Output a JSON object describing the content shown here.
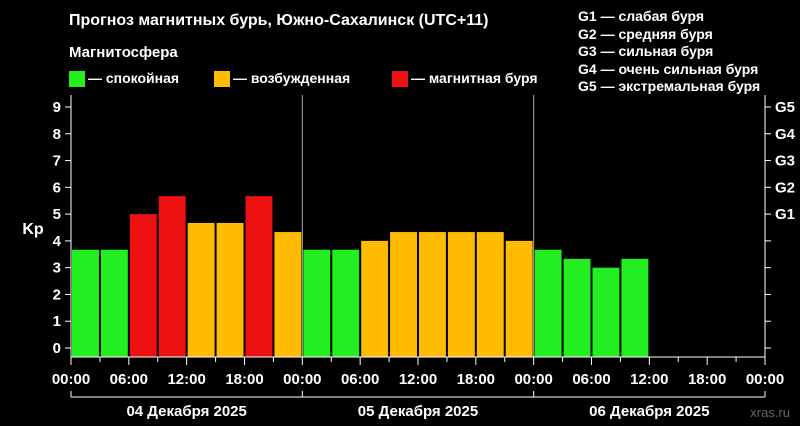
{
  "title": "Прогноз магнитных бурь, Южно-Сахалинск (UTC+11)",
  "subtitle": "Магнитосфера",
  "legend": [
    {
      "label": "— спокойная",
      "color": "#22ee22"
    },
    {
      "label": "— возбужденная",
      "color": "#ffbb00"
    },
    {
      "label": "— магнитная буря",
      "color": "#ee1111"
    }
  ],
  "g_legend": [
    "G1 — слабая буря",
    "G2 — средняя буря",
    "G3 — сильная буря",
    "G4 — очень сильная буря",
    "G5 — экстремальная буря"
  ],
  "watermark": "xras.ru",
  "chart_data": {
    "type": "bar",
    "ylabel": "Kp",
    "ylim": [
      0,
      9
    ],
    "yticks": [
      0,
      1,
      2,
      3,
      4,
      5,
      6,
      7,
      8,
      9
    ],
    "right_ticks": [
      {
        "value": 5,
        "label": "G1"
      },
      {
        "value": 6,
        "label": "G2"
      },
      {
        "value": 7,
        "label": "G3"
      },
      {
        "value": 8,
        "label": "G4"
      },
      {
        "value": 9,
        "label": "G5"
      }
    ],
    "x_tick_labels": [
      "00:00",
      "06:00",
      "12:00",
      "18:00",
      "00:00",
      "06:00",
      "12:00",
      "18:00",
      "00:00",
      "06:00",
      "12:00",
      "18:00",
      "00:00"
    ],
    "days": [
      "04 Декабря 2025",
      "05 Декабря 2025",
      "06 Декабря 2025"
    ],
    "bar_hours": [
      0,
      3,
      6,
      9,
      12,
      15,
      18,
      21,
      24,
      27,
      30,
      33,
      36,
      39,
      42,
      45,
      48,
      51,
      54,
      57
    ],
    "values": [
      3.67,
      3.67,
      5.0,
      5.67,
      4.67,
      4.67,
      5.67,
      4.33,
      3.67,
      3.67,
      4.0,
      4.33,
      4.33,
      4.33,
      4.33,
      4.0,
      3.67,
      3.33,
      3.0,
      3.33
    ],
    "colors": {
      "quiet": "#22ee22",
      "active": "#ffbb00",
      "storm": "#ee1111"
    },
    "thresholds": {
      "active": 4,
      "storm": 5
    },
    "grid": false
  }
}
